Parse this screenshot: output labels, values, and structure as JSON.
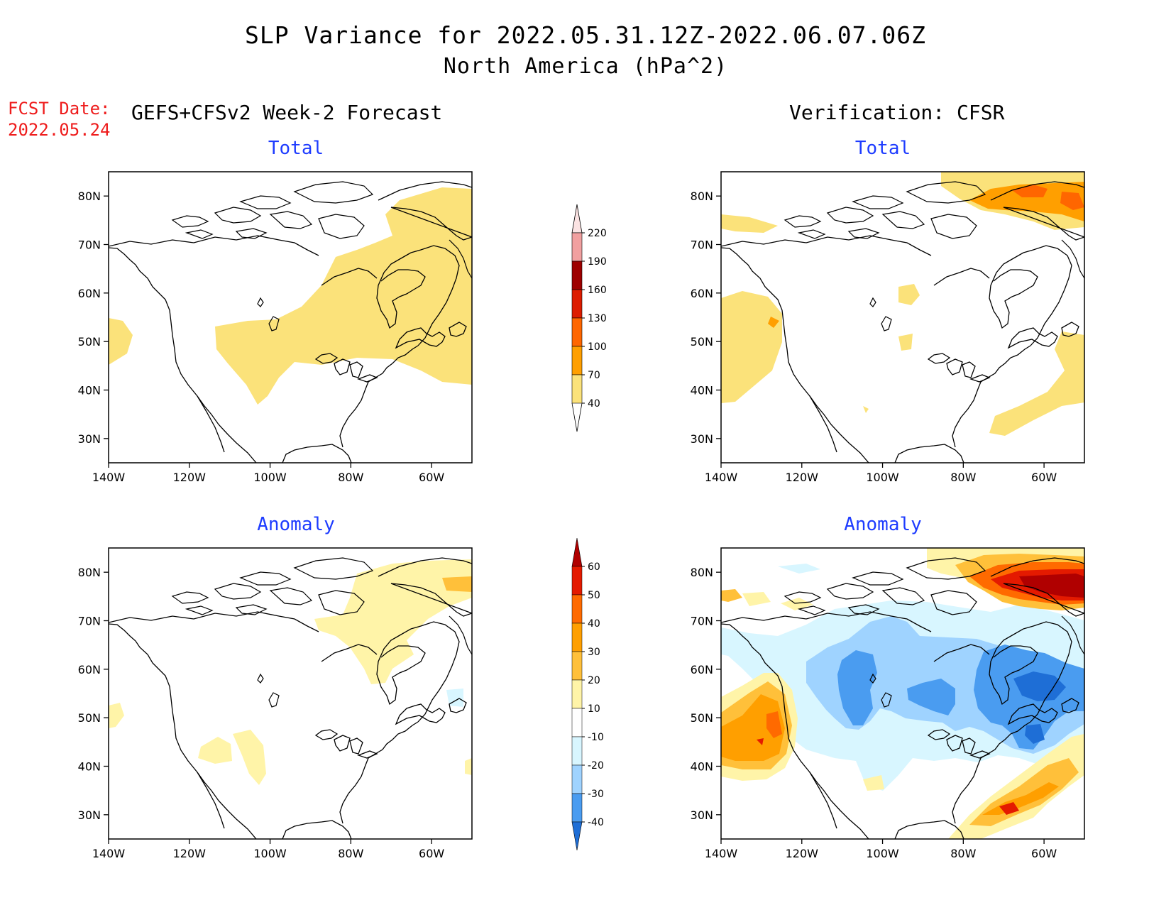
{
  "header": {
    "title": "SLP Variance for 2022.05.31.12Z-2022.06.07.06Z",
    "subtitle": "North America (hPa^2)",
    "fcst_label": "FCST Date:",
    "fcst_date": "2022.05.24",
    "left_heading": "GEFS+CFSv2 Week-2 Forecast",
    "right_heading": "Verification: CFSR"
  },
  "panels": {
    "fcst_total": {
      "title": "Total"
    },
    "verif_total": {
      "title": "Total"
    },
    "fcst_anom": {
      "title": "Anomaly"
    },
    "verif_anom": {
      "title": "Anomaly"
    }
  },
  "axes": {
    "lat_labels": [
      "80N",
      "70N",
      "60N",
      "50N",
      "40N",
      "30N"
    ],
    "lon_labels": [
      "140W",
      "120W",
      "100W",
      "80W",
      "60W"
    ]
  },
  "colorbar_total": {
    "labels": [
      "220",
      "190",
      "160",
      "130",
      "100",
      "70",
      "40"
    ],
    "colors": [
      "#fbe3e3",
      "#f1a0a0",
      "#9e0000",
      "#dd1c00",
      "#ff6600",
      "#ff9f00",
      "#fbe27a"
    ]
  },
  "colorbar_anomaly": {
    "labels": [
      "60",
      "50",
      "40",
      "30",
      "20",
      "10",
      "-10",
      "-20",
      "-30",
      "-40"
    ],
    "colors": [
      "#b00000",
      "#e41a00",
      "#ff6a00",
      "#ff9f00",
      "#ffc03a",
      "#fff4a8",
      "#ffffff",
      "#d8f6ff",
      "#9fd3ff",
      "#4a9cf0",
      "#1e6ed6"
    ]
  }
}
